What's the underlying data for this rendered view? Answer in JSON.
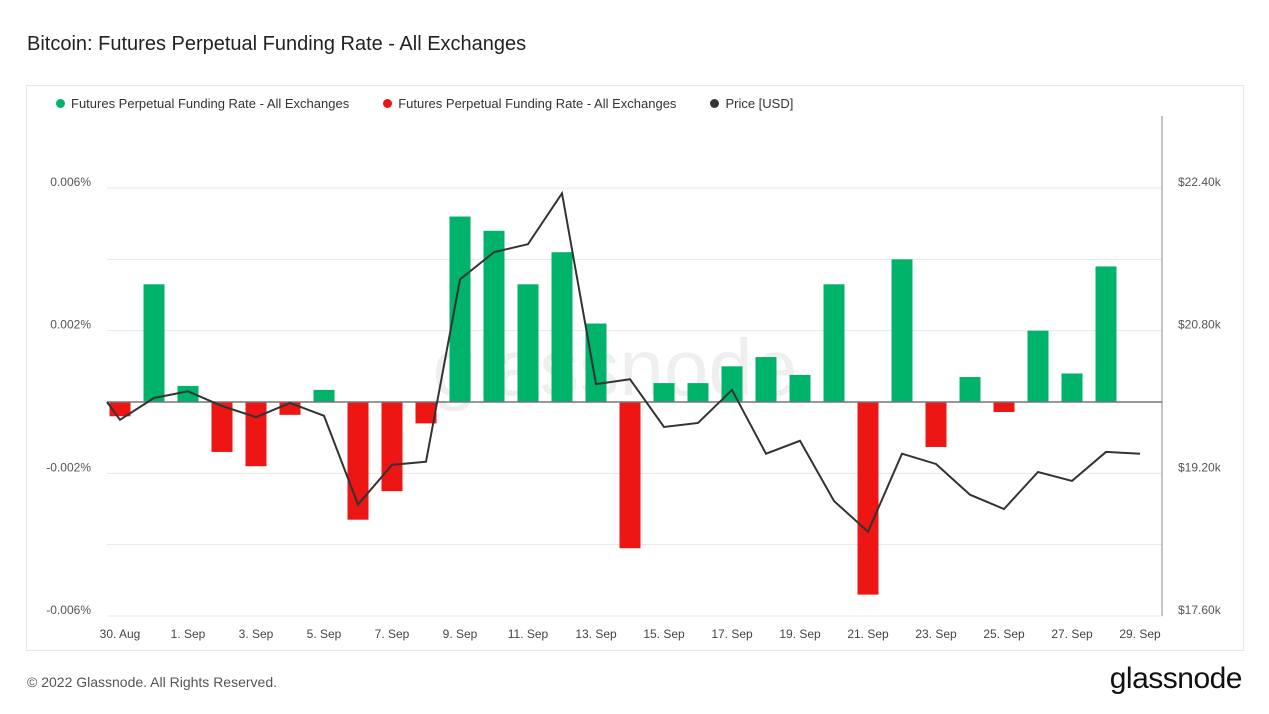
{
  "title": "Bitcoin: Futures Perpetual Funding Rate - All Exchanges",
  "footer": "© 2022 Glassnode. All Rights Reserved.",
  "brand": "glassnode",
  "watermark": "glassnode",
  "colors": {
    "positive": "#00b36b",
    "negative": "#ee1515",
    "price": "#333333"
  },
  "chart_data": {
    "type": "bar",
    "legend": [
      {
        "name": "Futures Perpetual Funding Rate - All Exchanges",
        "color": "#00b36b"
      },
      {
        "name": "Futures Perpetual Funding Rate - All Exchanges",
        "color": "#ee1515"
      },
      {
        "name": "Price [USD]",
        "color": "#333333"
      }
    ],
    "legend_position": "top-left",
    "grid": true,
    "categories": [
      "30 Aug",
      "31 Aug",
      "1 Sep",
      "2 Sep",
      "3 Sep",
      "4 Sep",
      "5 Sep",
      "6 Sep",
      "7 Sep",
      "8 Sep",
      "9 Sep",
      "10 Sep",
      "11 Sep",
      "12 Sep",
      "13 Sep",
      "14 Sep",
      "15 Sep",
      "16 Sep",
      "17 Sep",
      "18 Sep",
      "19 Sep",
      "20 Sep",
      "21 Sep",
      "22 Sep",
      "23 Sep",
      "24 Sep",
      "25 Sep",
      "26 Sep",
      "27 Sep",
      "28 Sep",
      "29 Sep"
    ],
    "x_tick_labels": [
      "30. Aug",
      "1. Sep",
      "3. Sep",
      "5. Sep",
      "7. Sep",
      "9. Sep",
      "11. Sep",
      "13. Sep",
      "15. Sep",
      "17. Sep",
      "19. Sep",
      "21. Sep",
      "23. Sep",
      "25. Sep",
      "27. Sep",
      "29. Sep"
    ],
    "funding_rate_percent": [
      -0.0004,
      0.0033,
      0.00045,
      -0.0014,
      -0.0018,
      -0.00036,
      0.00034,
      -0.0033,
      -0.0025,
      -0.0006,
      0.0052,
      0.0048,
      0.0033,
      0.0042,
      0.0022,
      -0.0041,
      0.00053,
      0.00053,
      0.001,
      0.00126,
      0.00076,
      0.0033,
      -0.0054,
      0.004,
      -0.00126,
      0.0007,
      -0.00028,
      0.002,
      0.0008,
      0.0038,
      null
    ],
    "price_usd": [
      19800,
      20045,
      20120,
      19955,
      19830,
      19990,
      19845,
      18850,
      19295,
      19330,
      21375,
      21680,
      21770,
      22340,
      20200,
      20255,
      19720,
      19765,
      20135,
      19420,
      19565,
      18890,
      18545,
      19420,
      19305,
      18960,
      18800,
      19215,
      19115,
      19440,
      19420
    ],
    "y_left": {
      "range": [
        -0.006,
        0.006
      ],
      "tick_labels": [
        "0.006%",
        "0.002%",
        "-0.002%",
        "-0.006%"
      ],
      "ticks": [
        0.006,
        0.002,
        -0.002,
        -0.006
      ]
    },
    "y_right": {
      "range": [
        17600,
        22400
      ],
      "tick_labels": [
        "$22.40k",
        "$20.80k",
        "$19.20k",
        "$17.60k"
      ],
      "ticks": [
        22400,
        20800,
        19200,
        17600
      ]
    }
  }
}
